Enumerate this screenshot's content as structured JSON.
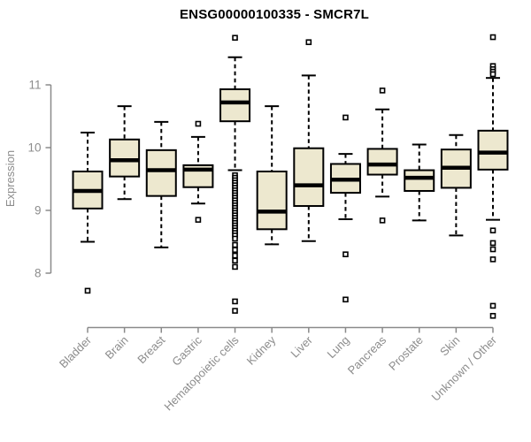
{
  "chart_data": {
    "type": "boxplot",
    "title": "ENSG00000100335 - SMCR7L",
    "ylabel": "Expression",
    "xlabel": "",
    "yticks": [
      8,
      9,
      10,
      11
    ],
    "ylim": [
      7.2,
      11.9
    ],
    "grid": false,
    "legend": null,
    "colors": {
      "box_fill": "#EDE8CF",
      "box_stroke": "#000000",
      "median": "#000000",
      "whisker": "#000000",
      "axis": "#8A8A8A",
      "tick_label": "#8C8C8C",
      "title": "#000000",
      "outlier_fill": "#ffffff",
      "outlier_stroke": "#000000"
    },
    "categories": [
      "Bladder",
      "Brain",
      "Breast",
      "Gastric",
      "Hematopoietic cells",
      "Kidney",
      "Liver",
      "Lung",
      "Pancreas",
      "Prostate",
      "Skin",
      "Unknown / Other"
    ],
    "boxes": [
      {
        "category": "Bladder",
        "whisker_low": 8.5,
        "q1": 9.03,
        "median": 9.31,
        "q3": 9.62,
        "whisker_high": 10.24,
        "outliers": [
          7.72
        ]
      },
      {
        "category": "Brain",
        "whisker_low": 9.18,
        "q1": 9.54,
        "median": 9.8,
        "q3": 10.13,
        "whisker_high": 10.66,
        "outliers": []
      },
      {
        "category": "Breast",
        "whisker_low": 8.41,
        "q1": 9.23,
        "median": 9.64,
        "q3": 9.96,
        "whisker_high": 10.41,
        "outliers": []
      },
      {
        "category": "Gastric",
        "whisker_low": 9.11,
        "q1": 9.37,
        "median": 9.65,
        "q3": 9.72,
        "whisker_high": 10.17,
        "outliers": [
          10.38,
          8.85
        ]
      },
      {
        "category": "Hematopoietic cells",
        "whisker_low": 9.64,
        "q1": 10.42,
        "median": 10.72,
        "q3": 10.93,
        "whisker_high": 11.44,
        "outliers": [
          11.75,
          9.56,
          9.52,
          9.48,
          9.44,
          9.4,
          9.36,
          9.32,
          9.28,
          9.24,
          9.2,
          9.16,
          9.12,
          9.08,
          9.04,
          9.0,
          8.96,
          8.92,
          8.88,
          8.84,
          8.8,
          8.76,
          8.72,
          8.68,
          8.64,
          8.6,
          8.55,
          8.45,
          8.37,
          8.28,
          8.2,
          8.1,
          7.55,
          7.4
        ]
      },
      {
        "category": "Kidney",
        "whisker_low": 8.46,
        "q1": 8.7,
        "median": 8.98,
        "q3": 9.62,
        "whisker_high": 10.66,
        "outliers": []
      },
      {
        "category": "Liver",
        "whisker_low": 8.51,
        "q1": 9.07,
        "median": 9.4,
        "q3": 9.99,
        "whisker_high": 11.15,
        "outliers": [
          11.68
        ]
      },
      {
        "category": "Lung",
        "whisker_low": 8.86,
        "q1": 9.28,
        "median": 9.49,
        "q3": 9.74,
        "whisker_high": 9.9,
        "outliers": [
          10.48,
          8.3,
          7.58
        ]
      },
      {
        "category": "Pancreas",
        "whisker_low": 9.22,
        "q1": 9.57,
        "median": 9.73,
        "q3": 9.98,
        "whisker_high": 10.61,
        "outliers": [
          10.91,
          8.84
        ]
      },
      {
        "category": "Prostate",
        "whisker_low": 8.84,
        "q1": 9.31,
        "median": 9.52,
        "q3": 9.64,
        "whisker_high": 10.05,
        "outliers": []
      },
      {
        "category": "Skin",
        "whisker_low": 8.6,
        "q1": 9.36,
        "median": 9.68,
        "q3": 9.97,
        "whisker_high": 10.2,
        "outliers": []
      },
      {
        "category": "Unknown / Other",
        "whisker_low": 8.85,
        "q1": 9.65,
        "median": 9.92,
        "q3": 10.27,
        "whisker_high": 11.11,
        "outliers": [
          11.76,
          11.3,
          11.25,
          11.21,
          11.17,
          8.68,
          8.48,
          8.38,
          8.22,
          7.48,
          7.32
        ]
      }
    ]
  }
}
